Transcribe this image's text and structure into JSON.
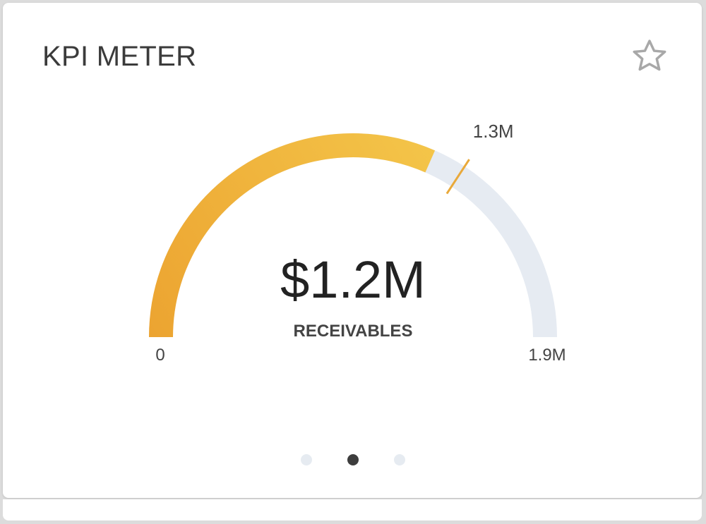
{
  "card": {
    "title": "KPI METER"
  },
  "gauge": {
    "value": 1.2,
    "value_label": "$1.2M",
    "kpi_label": "RECEIVABLES",
    "min": 0,
    "min_label": "0",
    "max": 1.9,
    "max_label": "1.9M",
    "target": 1.3,
    "target_label": "1.3M",
    "colors": {
      "fill_start": "#eca431",
      "fill_end": "#f4c64a",
      "track": "#e6ebf2",
      "target_marker": "#e9a93a",
      "text": "#222222",
      "label": "#444444"
    }
  },
  "pager": {
    "count": 3,
    "active_index": 1
  },
  "icons": {
    "favorite": "star-outline-icon"
  }
}
